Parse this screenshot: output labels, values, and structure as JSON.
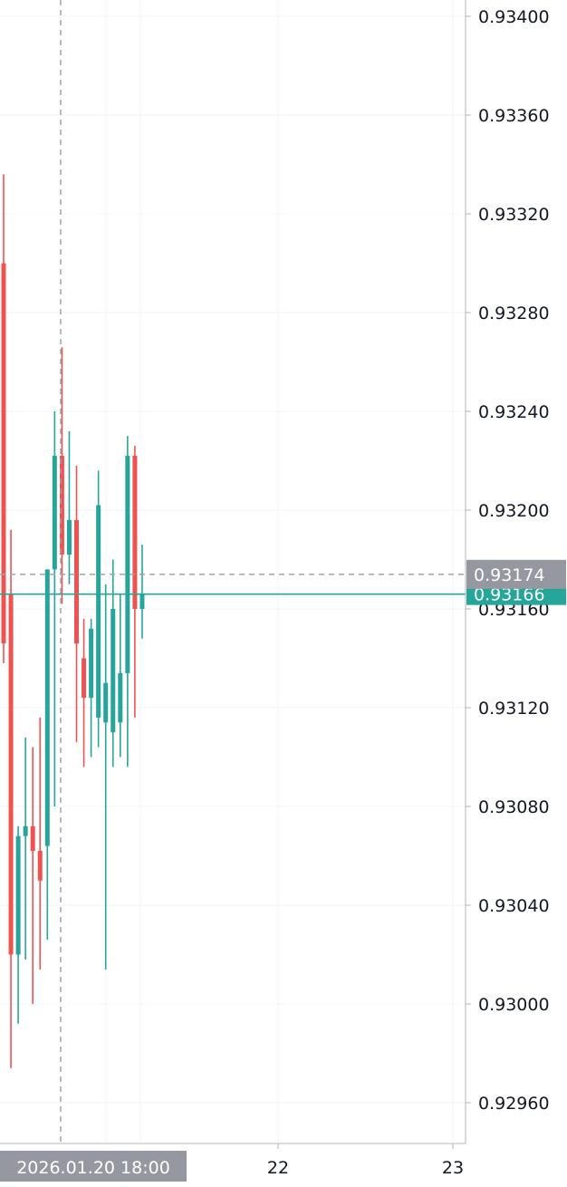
{
  "chart_data": {
    "type": "candlestick",
    "y_ticks": [
      "0.92960",
      "0.93000",
      "0.93040",
      "0.93080",
      "0.93120",
      "0.93160",
      "0.93200",
      "0.93240",
      "0.93280",
      "0.93320",
      "0.93360",
      "0.93400"
    ],
    "x_labels": [
      "22",
      "23"
    ],
    "crosshair_time": "2026.01.20 18:00",
    "crosshair_price": "0.93174",
    "last_price": "0.93166",
    "grid": true,
    "colors": {
      "up": "#26a69a",
      "down": "#ef5350",
      "grid": "#f0f3fa",
      "axis": "#b2b5be",
      "tag_gray": "#9598a1"
    },
    "candles": [
      {
        "o": 0.933,
        "h": 0.93336,
        "l": 0.93138,
        "c": 0.93146
      },
      {
        "o": 0.93166,
        "h": 0.93192,
        "l": 0.92974,
        "c": 0.9302
      },
      {
        "o": 0.9302,
        "h": 0.93072,
        "l": 0.92992,
        "c": 0.93068
      },
      {
        "o": 0.93068,
        "h": 0.93108,
        "l": 0.93018,
        "c": 0.93072
      },
      {
        "o": 0.93072,
        "h": 0.93104,
        "l": 0.93,
        "c": 0.93062
      },
      {
        "o": 0.93062,
        "h": 0.93116,
        "l": 0.93014,
        "c": 0.9305
      },
      {
        "o": 0.93064,
        "h": 0.93176,
        "l": 0.93026,
        "c": 0.93176
      },
      {
        "o": 0.93176,
        "h": 0.9324,
        "l": 0.9308,
        "c": 0.93222
      },
      {
        "o": 0.93222,
        "h": 0.93266,
        "l": 0.93162,
        "c": 0.93182
      },
      {
        "o": 0.93182,
        "h": 0.93232,
        "l": 0.9317,
        "c": 0.93196
      },
      {
        "o": 0.93196,
        "h": 0.93218,
        "l": 0.93106,
        "c": 0.93146
      },
      {
        "o": 0.9314,
        "h": 0.93156,
        "l": 0.93096,
        "c": 0.93124
      },
      {
        "o": 0.93124,
        "h": 0.93156,
        "l": 0.931,
        "c": 0.93152
      },
      {
        "o": 0.93116,
        "h": 0.93216,
        "l": 0.93104,
        "c": 0.93202
      },
      {
        "o": 0.93114,
        "h": 0.9317,
        "l": 0.93014,
        "c": 0.9313
      },
      {
        "o": 0.9311,
        "h": 0.9318,
        "l": 0.93096,
        "c": 0.9316
      },
      {
        "o": 0.93114,
        "h": 0.93166,
        "l": 0.931,
        "c": 0.93134
      },
      {
        "o": 0.93134,
        "h": 0.9323,
        "l": 0.93096,
        "c": 0.93222
      },
      {
        "o": 0.93222,
        "h": 0.93226,
        "l": 0.93116,
        "c": 0.9316
      },
      {
        "o": 0.9316,
        "h": 0.93186,
        "l": 0.93148,
        "c": 0.93166
      }
    ]
  }
}
